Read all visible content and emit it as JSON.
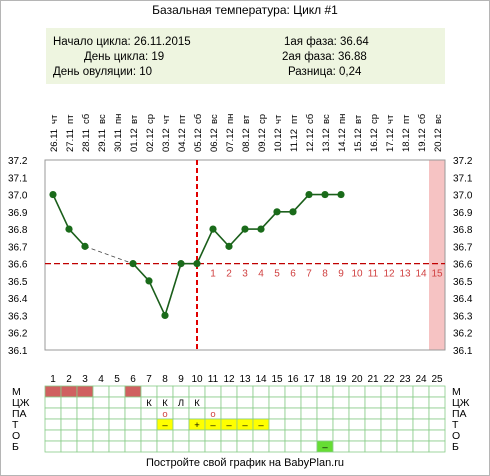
{
  "title": "Базальная температура: Цикл #1",
  "summary": {
    "cycle_start": "Начало цикла: 26.11.2015",
    "cycle_day": "День цикла: 19",
    "ovulation_day": "День овуляции: 10",
    "phase1": "1ая фаза: 36.64",
    "phase2": "2ая фаза: 36.88",
    "difference": "Разница: 0,24"
  },
  "footer": "Постройте свой график на BabyPlan.ru",
  "colors": {
    "line": "#1a5e1a",
    "point": "#1a6b1a",
    "coverline": "#c00000",
    "ovulation": "#e00000",
    "future_highlight": "#f6c3c3",
    "menses": "#d06060",
    "grid": "#88cc88",
    "summary_bg": "#eef5e0",
    "phase2_numbers": "#d04040",
    "mark_yellow": "#ffff00",
    "mark_green": "#66dd33"
  },
  "chart_data": {
    "type": "line",
    "title": "Базальная температура: Цикл #1",
    "ylim": [
      36.1,
      37.2
    ],
    "yticks": [
      "37.2",
      "37.1",
      "37.0",
      "36.9",
      "36.8",
      "36.7",
      "36.6",
      "36.5",
      "36.4",
      "36.3",
      "36.2",
      "36.1"
    ],
    "days": [
      1,
      2,
      3,
      4,
      5,
      6,
      7,
      8,
      9,
      10,
      11,
      12,
      13,
      14,
      15,
      16,
      17,
      18,
      19,
      20,
      21,
      22,
      23,
      24,
      25
    ],
    "weekdays": [
      "чт",
      "пт",
      "сб",
      "вс",
      "пн",
      "вт",
      "ср",
      "чт",
      "пт",
      "сб",
      "вс",
      "пн",
      "вт",
      "ср",
      "чт",
      "пт",
      "сб",
      "вс",
      "пн",
      "вт",
      "ср",
      "чт",
      "пт",
      "сб",
      "вс"
    ],
    "dates": [
      "26.11",
      "27.11",
      "28.11",
      "29.11",
      "30.11",
      "01.12",
      "02.12",
      "03.12",
      "04.12",
      "05.12",
      "06.12",
      "07.12",
      "08.12",
      "09.12",
      "10.12",
      "11.12",
      "12.12",
      "13.12",
      "14.12",
      "15.12",
      "16.12",
      "17.12",
      "18.12",
      "19.12",
      "20.12"
    ],
    "temperatures": [
      37.0,
      36.8,
      36.7,
      null,
      null,
      36.6,
      36.5,
      36.3,
      36.6,
      36.6,
      36.8,
      36.7,
      36.8,
      36.8,
      36.9,
      36.9,
      37.0,
      37.0,
      37.0,
      null,
      null,
      null,
      null,
      null,
      null
    ],
    "coverline": 36.6,
    "ovulation_day": 10,
    "phase2_numbers": [
      "1",
      "2",
      "3",
      "4",
      "5",
      "6",
      "7",
      "8",
      "9",
      "10",
      "11",
      "12",
      "13",
      "14",
      "15"
    ],
    "highlight_day": 25,
    "rows": [
      {
        "label": "М",
        "marks": {
          "1": "fill",
          "2": "fill",
          "3": "fill",
          "6": "fill"
        }
      },
      {
        "label": "ЦЖ",
        "marks": {
          "7": "К",
          "8": "К",
          "9": "Л",
          "10": "К"
        }
      },
      {
        "label": "ПА",
        "marks": {
          "8": "о",
          "11": "о"
        }
      },
      {
        "label": "Т",
        "marks": {
          "8": "–",
          "10": "+",
          "11": "–",
          "12": "–",
          "13": "–",
          "14": "–"
        }
      },
      {
        "label": "О",
        "marks": {}
      },
      {
        "label": "Б",
        "marks": {
          "18": "–"
        }
      }
    ]
  }
}
